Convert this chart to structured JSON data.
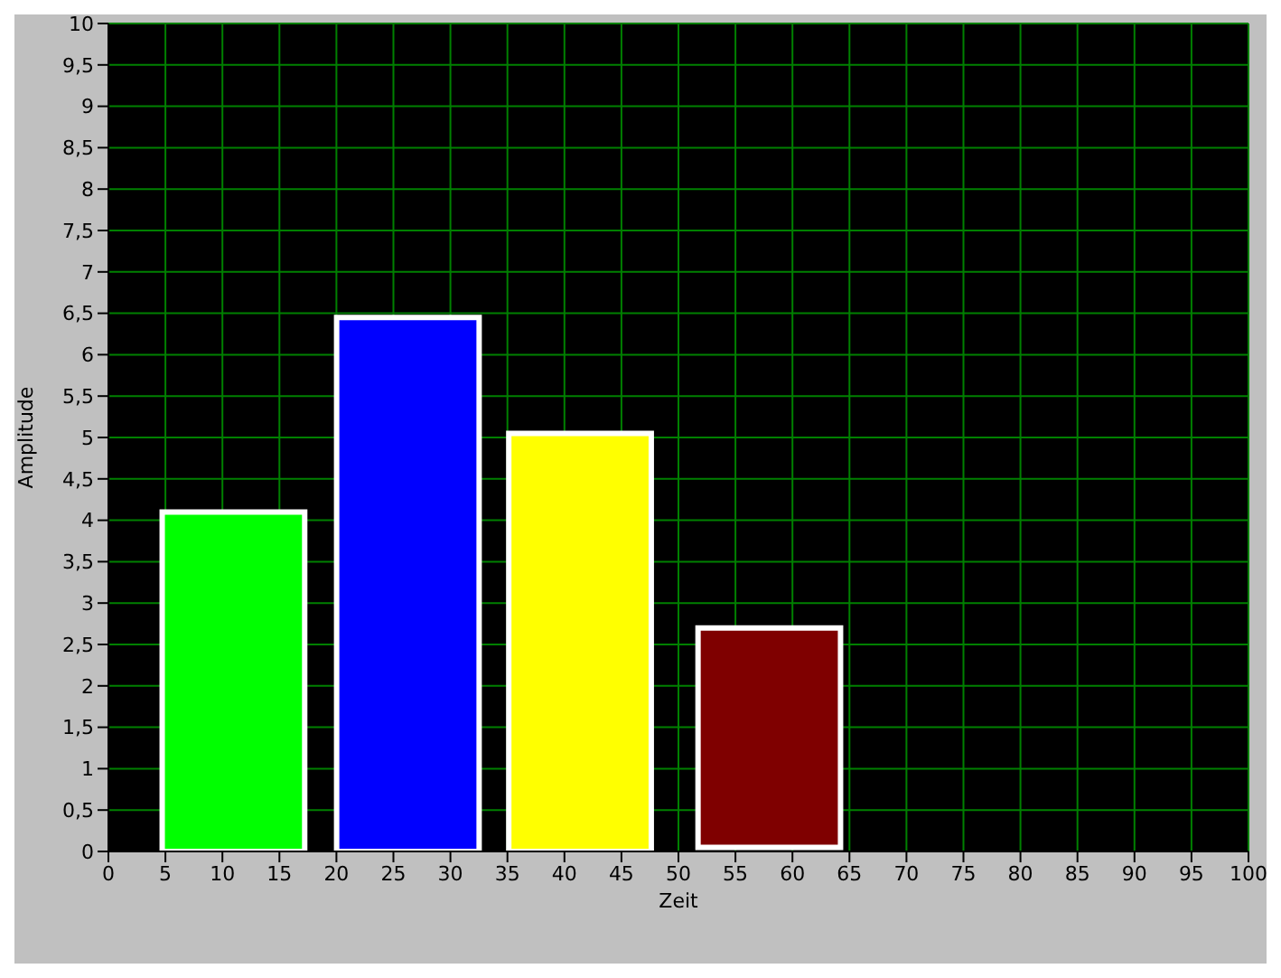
{
  "chart_data": {
    "type": "bar",
    "xlabel": "Zeit",
    "ylabel": "Amplitude",
    "x": [
      11,
      26.3,
      41.4,
      58
    ],
    "values": [
      4.1,
      6.45,
      5.05,
      2.65
    ],
    "base": [
      0,
      0,
      0,
      0.05
    ],
    "colors": [
      "#00ff00",
      "#0000ff",
      "#ffff00",
      "#7f0000"
    ],
    "xlim": [
      0,
      100
    ],
    "xticks": [
      0,
      5,
      10,
      15,
      20,
      25,
      30,
      35,
      40,
      45,
      50,
      55,
      60,
      65,
      70,
      75,
      80,
      85,
      90,
      95,
      100
    ],
    "ylim": [
      0,
      10
    ],
    "yticks": [
      0,
      {
        "value": 0.5,
        "label": "0,5"
      },
      1,
      {
        "value": 1.5,
        "label": "1,5"
      },
      2,
      {
        "value": 2.5,
        "label": "2,5"
      },
      3,
      {
        "value": 3.5,
        "label": "3,5"
      },
      4,
      {
        "value": 4.5,
        "label": "4,5"
      },
      5,
      {
        "value": 5.5,
        "label": "5,5"
      },
      6,
      {
        "value": 6.5,
        "label": "6,5"
      },
      7,
      {
        "value": 7.5,
        "label": "7,5"
      },
      8,
      {
        "value": 8.5,
        "label": "8,5"
      },
      9,
      {
        "value": 9.5,
        "label": "9,5"
      },
      10
    ],
    "grid": true
  }
}
